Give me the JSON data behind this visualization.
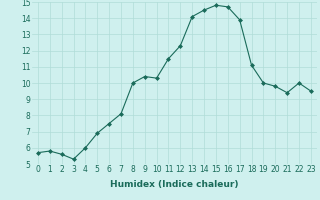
{
  "x": [
    0,
    1,
    2,
    3,
    4,
    5,
    6,
    7,
    8,
    9,
    10,
    11,
    12,
    13,
    14,
    15,
    16,
    17,
    18,
    19,
    20,
    21,
    22,
    23
  ],
  "y": [
    5.7,
    5.8,
    5.6,
    5.3,
    6.0,
    6.9,
    7.5,
    8.1,
    10.0,
    10.4,
    10.3,
    11.5,
    12.3,
    14.1,
    14.5,
    14.8,
    14.7,
    13.9,
    11.1,
    10.0,
    9.8,
    9.4,
    10.0,
    9.5
  ],
  "xlim": [
    -0.5,
    23.5
  ],
  "ylim": [
    5,
    15
  ],
  "yticks": [
    5,
    6,
    7,
    8,
    9,
    10,
    11,
    12,
    13,
    14,
    15
  ],
  "xticks": [
    0,
    1,
    2,
    3,
    4,
    5,
    6,
    7,
    8,
    9,
    10,
    11,
    12,
    13,
    14,
    15,
    16,
    17,
    18,
    19,
    20,
    21,
    22,
    23
  ],
  "xlabel": "Humidex (Indice chaleur)",
  "line_color": "#1a6b5a",
  "marker": "D",
  "marker_size": 2.0,
  "bg_color": "#cff0ee",
  "grid_color": "#b0ddd8",
  "tick_fontsize": 5.5,
  "xlabel_fontsize": 6.5
}
